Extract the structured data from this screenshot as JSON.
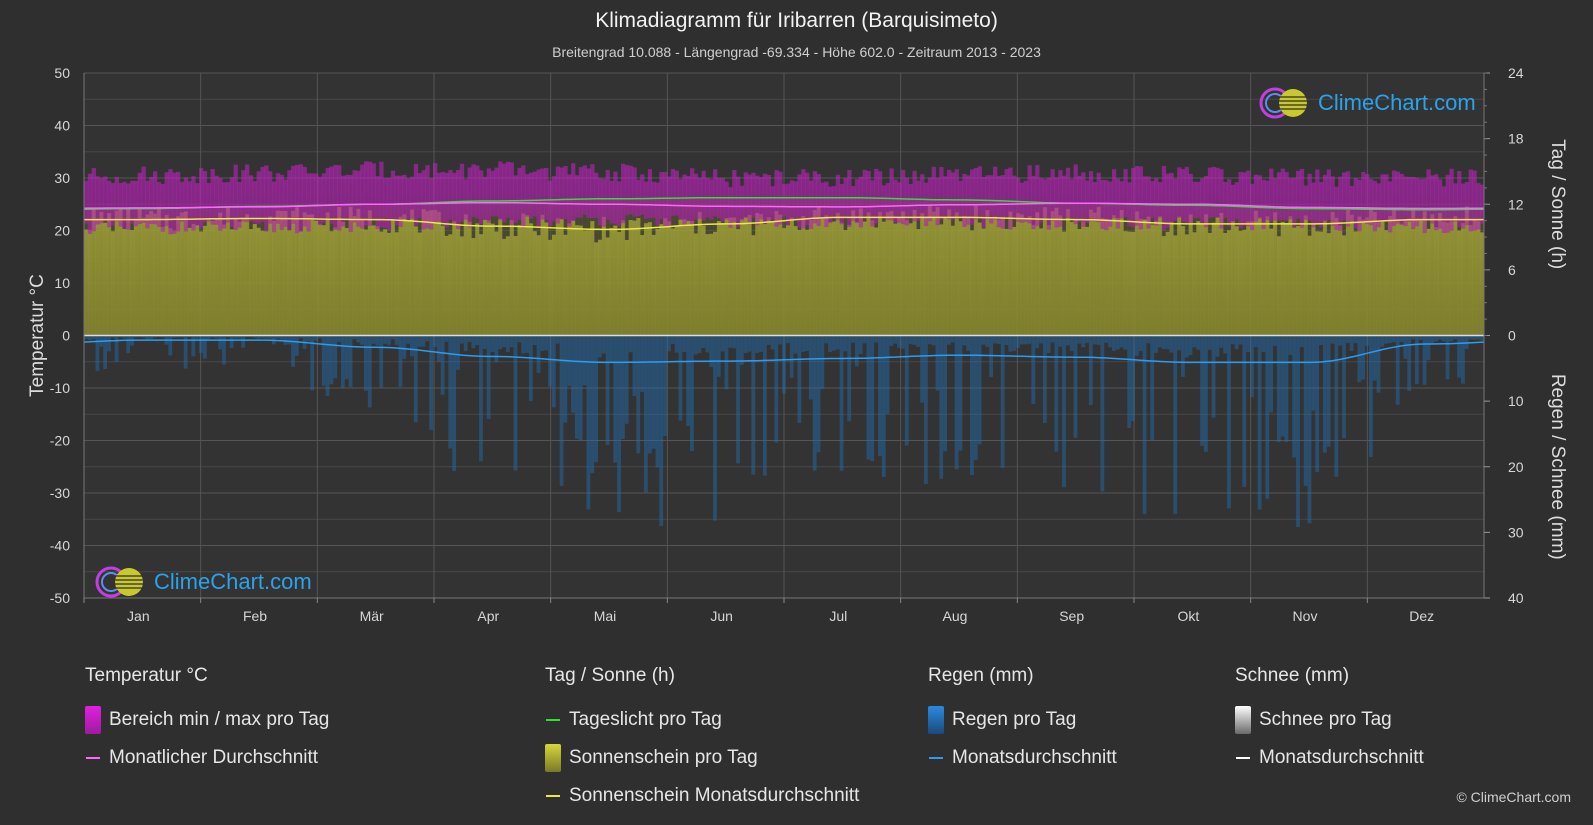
{
  "header": {
    "title": "Klimadiagramm für Iribarren (Barquisimeto)",
    "subtitle": "Breitengrad 10.088 - Längengrad -69.334 - Höhe 602.0 - Zeitraum 2013 - 2023"
  },
  "logo_text": "ClimeChart.com",
  "copyright": "© ClimeChart.com",
  "colors": {
    "background": "#2f2f2f",
    "temp_range": "#c81ec8",
    "temp_avg": "#ff66ff",
    "daylight": "#33dd33",
    "sunshine_fill": "#a6a632",
    "sunshine_avg": "#eaea44",
    "rain": "#1f6fb4",
    "rain_avg": "#2a9df0",
    "snow_avg": "#ffffff"
  },
  "legend": {
    "temp": {
      "header": "Temperatur °C",
      "range_label": "Bereich min / max pro Tag",
      "avg_label": "Monatlicher Durchschnitt"
    },
    "sun": {
      "header": "Tag / Sonne (h)",
      "daylight_label": "Tageslicht pro Tag",
      "sunshine_label": "Sonnenschein pro Tag",
      "sunshine_avg_label": "Sonnenschein Monatsdurchschnitt"
    },
    "rain": {
      "header": "Regen (mm)",
      "rain_label": "Regen pro Tag",
      "avg_label": "Monatsdurchschnitt"
    },
    "snow": {
      "header": "Schnee (mm)",
      "snow_label": "Schnee pro Tag",
      "avg_label": "Monatsdurchschnitt"
    }
  },
  "chart_data": {
    "type": "area",
    "categories": [
      "Jan",
      "Feb",
      "Mär",
      "Apr",
      "Mai",
      "Jun",
      "Jul",
      "Aug",
      "Sep",
      "Okt",
      "Nov",
      "Dez"
    ],
    "left_axis": {
      "label": "Temperatur °C",
      "ticks": [
        50,
        40,
        30,
        20,
        10,
        0,
        -10,
        -20,
        -30,
        -40,
        -50
      ],
      "range": [
        -50,
        50
      ]
    },
    "right_axis_top": {
      "label": "Tag / Sonne (h)",
      "ticks": [
        24,
        18,
        12,
        6,
        0
      ],
      "range": [
        0,
        24
      ]
    },
    "right_axis_bottom": {
      "label": "Regen / Schnee (mm)",
      "ticks": [
        0,
        10,
        20,
        30,
        40
      ],
      "range": [
        0,
        40
      ]
    },
    "grid": true,
    "series": [
      {
        "name": "Bereich min / max pro Tag",
        "axis": "temperature",
        "min": [
          20.5,
          20.6,
          21.0,
          21.5,
          22.0,
          21.5,
          21.5,
          21.5,
          21.3,
          21.3,
          21.0,
          20.7
        ],
        "max": [
          30.5,
          31.0,
          31.5,
          31.5,
          31.0,
          30.0,
          30.0,
          30.5,
          31.0,
          30.5,
          30.0,
          30.0
        ]
      },
      {
        "name": "Monatlicher Durchschnitt",
        "axis": "temperature",
        "values": [
          24.3,
          24.5,
          25.0,
          25.3,
          25.0,
          24.6,
          24.5,
          24.9,
          25.2,
          25.0,
          24.4,
          24.2
        ]
      },
      {
        "name": "Tageslicht pro Tag",
        "axis": "sun_hours",
        "values": [
          11.6,
          11.8,
          12.0,
          12.3,
          12.5,
          12.6,
          12.6,
          12.4,
          12.1,
          11.9,
          11.6,
          11.5
        ]
      },
      {
        "name": "Sonnenschein Monatsdurchschnitt",
        "axis": "sun_hours",
        "values": [
          10.6,
          10.7,
          10.6,
          10.0,
          9.7,
          10.2,
          10.8,
          10.8,
          10.6,
          10.2,
          10.2,
          10.6
        ]
      },
      {
        "name": "Regen Monatsdurchschnitt",
        "axis": "rain_mm",
        "values": [
          0.7,
          0.7,
          1.8,
          3.2,
          4.1,
          3.9,
          3.5,
          3.0,
          3.3,
          4.1,
          4.1,
          1.3
        ]
      },
      {
        "name": "Schnee Monatsdurchschnitt",
        "axis": "rain_mm",
        "values": [
          0,
          0,
          0,
          0,
          0,
          0,
          0,
          0,
          0,
          0,
          0,
          0
        ]
      }
    ]
  }
}
